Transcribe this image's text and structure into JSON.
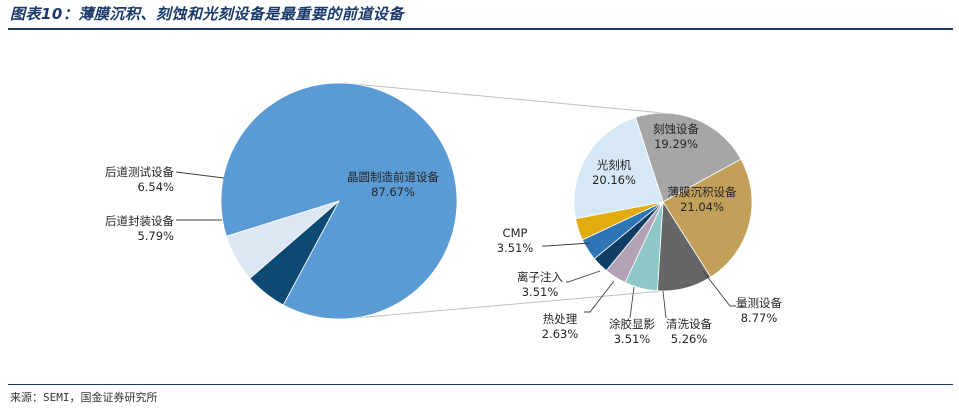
{
  "title": "图表10：薄膜沉积、刻蚀和光刻设备是最重要的前道设备",
  "source": "来源：SEMI，国金证券研究所",
  "chart_data": [
    {
      "type": "pie",
      "slices": [
        {
          "label": "晶圆制造前道设备",
          "value": 87.67,
          "value_text": "87.67%",
          "color": "#5b9bd5"
        },
        {
          "label": "后道封装设备",
          "value": 5.79,
          "value_text": "5.79%",
          "color": "#0d4a73"
        },
        {
          "label": "后道测试设备",
          "value": 6.54,
          "value_text": "6.54%",
          "color": "#dde6f3"
        }
      ]
    },
    {
      "type": "pie",
      "slices": [
        {
          "label": "刻蚀设备",
          "value": 19.29,
          "value_text": "19.29%",
          "color": "#a6a6a6"
        },
        {
          "label": "薄膜沉积设备",
          "value": 21.04,
          "value_text": "21.04%",
          "color": "#c3a05a"
        },
        {
          "label": "量测设备",
          "value": 8.77,
          "value_text": "8.77%",
          "color": "#666666"
        },
        {
          "label": "清洗设备",
          "value": 5.26,
          "value_text": "5.26%",
          "color": "#8ec9c7"
        },
        {
          "label": "涂胶显影",
          "value": 3.51,
          "value_text": "3.51%",
          "color": "#b3a2b7"
        },
        {
          "label": "热处理",
          "value": 2.63,
          "value_text": "2.63%",
          "color": "#103d63"
        },
        {
          "label": "离子注入",
          "value": 3.51,
          "value_text": "3.51%",
          "color": "#2e75b6"
        },
        {
          "label": "CMP",
          "value": 3.51,
          "value_text": "3.51%",
          "color": "#e2ac10"
        },
        {
          "label": "光刻机",
          "value": 20.16,
          "value_text": "20.16%",
          "color": "#d6e7f5"
        }
      ]
    }
  ]
}
